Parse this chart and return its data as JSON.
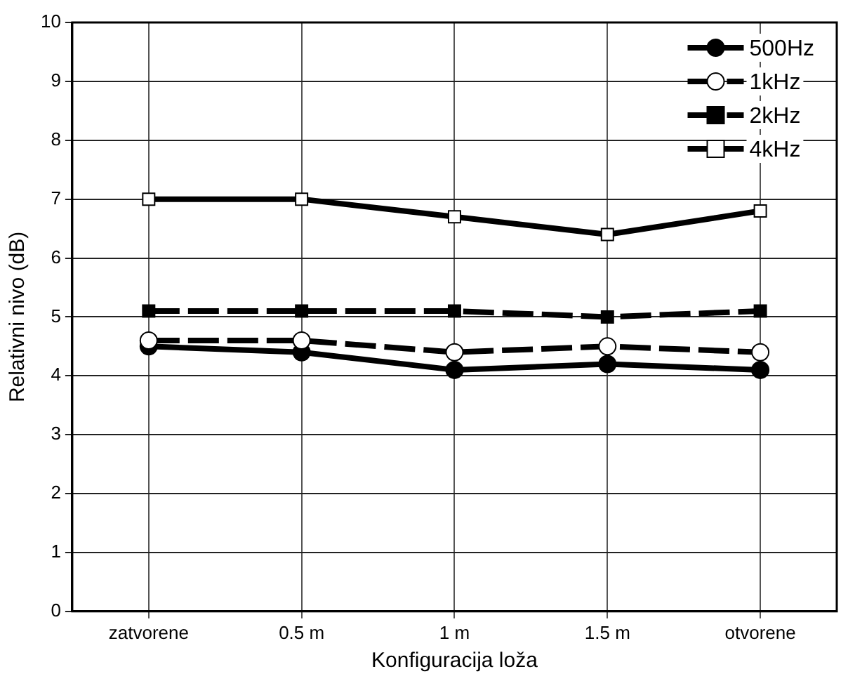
{
  "chart_data": {
    "type": "line",
    "xlabel": "Konfiguracija loža",
    "ylabel": "Relativni nivo (dB)",
    "categories": [
      "zatvorene",
      "0.5 m",
      "1 m",
      "1.5 m",
      "otvorene"
    ],
    "ylim": [
      0,
      10
    ],
    "yticks": [
      0,
      1,
      2,
      3,
      4,
      5,
      6,
      7,
      8,
      9,
      10
    ],
    "grid": true,
    "legend": "top right",
    "series": [
      {
        "name": "500Hz",
        "color": "#000000",
        "marker": "circle",
        "line_style": "solid",
        "values": [
          4.5,
          4.4,
          4.1,
          4.2,
          4.1
        ]
      },
      {
        "name": "1kHz",
        "color": "#000000",
        "marker": "circle",
        "line_style": "dashed",
        "values": [
          4.6,
          4.6,
          4.4,
          4.5,
          4.4
        ]
      },
      {
        "name": "2kHz",
        "color": "#000000",
        "marker": "square",
        "line_style": "dashed",
        "values": [
          5.1,
          5.1,
          5.1,
          5.0,
          5.1
        ]
      },
      {
        "name": "4kHz",
        "color": "#000000",
        "marker": "square",
        "line_style": "solid",
        "values": [
          7.0,
          7.0,
          6.7,
          6.4,
          6.8
        ]
      }
    ]
  }
}
